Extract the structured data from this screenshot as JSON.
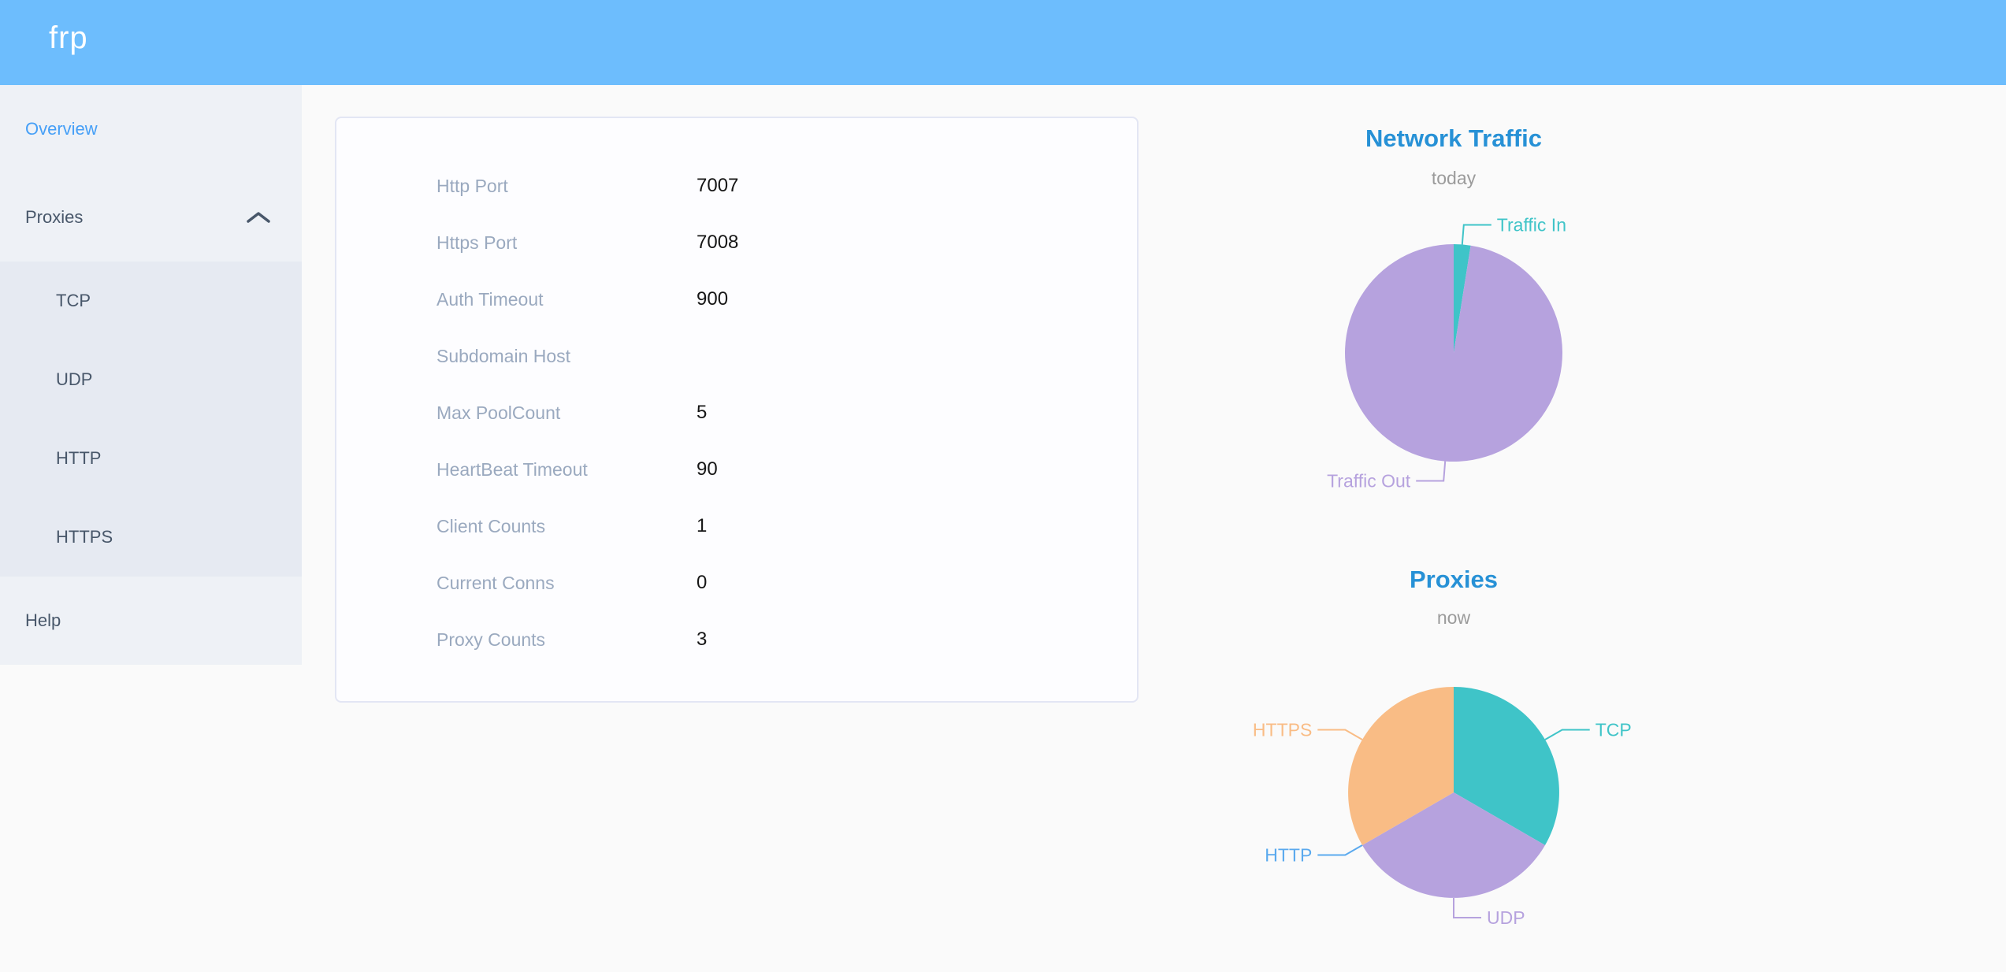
{
  "header": {
    "logo": "frp"
  },
  "sidebar": {
    "overview": "Overview",
    "proxies": "Proxies",
    "submenu": {
      "tcp": "TCP",
      "udp": "UDP",
      "http": "HTTP",
      "https": "HTTPS"
    },
    "help": "Help"
  },
  "card": {
    "rows": [
      {
        "label": "Http Port",
        "value": "7007"
      },
      {
        "label": "Https Port",
        "value": "7008"
      },
      {
        "label": "Auth Timeout",
        "value": "900"
      },
      {
        "label": "Subdomain Host",
        "value": ""
      },
      {
        "label": "Max PoolCount",
        "value": "5"
      },
      {
        "label": "HeartBeat Timeout",
        "value": "90"
      },
      {
        "label": "Client Counts",
        "value": "1"
      },
      {
        "label": "Current Conns",
        "value": "0"
      },
      {
        "label": "Proxy Counts",
        "value": "3"
      }
    ]
  },
  "chart_data": [
    {
      "type": "pie",
      "title": "Network Traffic",
      "subtitle": "today",
      "labels": "outside",
      "legend": "none",
      "series": [
        {
          "name": "Traffic In",
          "value": 2.5,
          "color": "#3fc4c8"
        },
        {
          "name": "Traffic Out",
          "value": 97.5,
          "color": "#b6a2de"
        }
      ],
      "note": "values are approximate percent shares estimated from slice angles"
    },
    {
      "type": "pie",
      "title": "Proxies",
      "subtitle": "now",
      "labels": "outside",
      "legend": "none",
      "series": [
        {
          "name": "TCP",
          "value": 1,
          "color": "#3fc4c8"
        },
        {
          "name": "UDP",
          "value": 1,
          "color": "#b6a2de"
        },
        {
          "name": "HTTP",
          "value": 0,
          "color": "#5aa9ee"
        },
        {
          "name": "HTTPS",
          "value": 1,
          "color": "#f9bc85"
        }
      ],
      "note": "proxy counts per type; HTTP has zero proxies (zero-width slice, label only)"
    }
  ],
  "colors": {
    "header_bg": "#6dbdfd",
    "sidebar_bg": "#eef1f6",
    "submenu_bg": "#e6eaf2",
    "menu_text": "#48576a",
    "menu_active": "#459ff7",
    "label_gray": "#9aa9bf",
    "value_black": "#161616",
    "chart_title": "#2791d6",
    "chart_subtitle": "#9b9b9b",
    "page_bg": "#fafafa",
    "card_bg": "#fdfdff",
    "card_border": "#e3e6f4"
  }
}
